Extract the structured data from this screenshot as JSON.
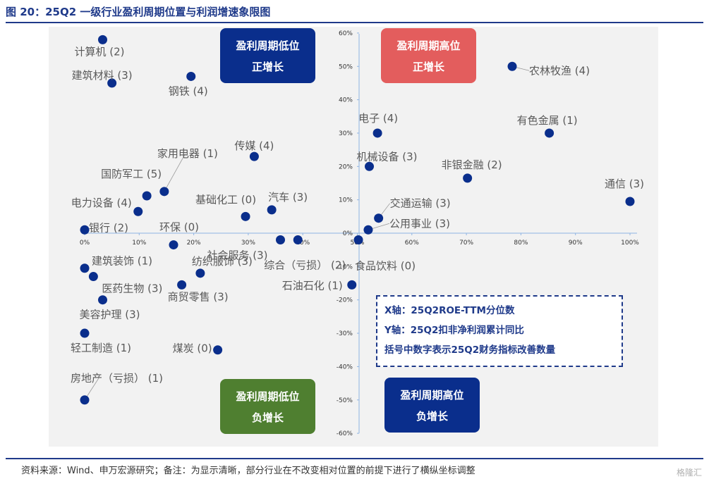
{
  "page": {
    "title": "图 20：25Q2 一级行业盈利周期位置与利润增速象限图",
    "source": "资料来源：Wind、申万宏源研究；备注：为显示清晰，部分行业在不改变相对位置的前提下进行了横纵坐标调整",
    "watermark": "格隆汇"
  },
  "legend": {
    "line1": "X轴：25Q2ROE-TTM分位数",
    "line2": "Y轴：25Q2扣非净利润累计同比",
    "line3": "括号中数字表示25Q2财务指标改善数量"
  },
  "colors": {
    "point": "#0a2e8c",
    "axis": "#8fb4e3",
    "tick_text": "#333333",
    "label_text": "#595959",
    "low_positive": "#0a2e8c",
    "high_positive": "#e35d5d",
    "low_negative": "#4f7f30",
    "high_negative": "#0a2e8c"
  },
  "chart_data": {
    "type": "scatter",
    "xlabel": "25Q2ROE-TTM分位数",
    "ylabel": "25Q2扣非净利润累计同比",
    "xlim": [
      0,
      1
    ],
    "ylim": [
      -0.6,
      0.6
    ],
    "x_tick_labels": [
      "0%",
      "10%",
      "20%",
      "30%",
      "40%",
      "50%",
      "60%",
      "70%",
      "80%",
      "90%",
      "100%"
    ],
    "y_tick_labels": [
      "-60%",
      "-50%",
      "-40%",
      "-30%",
      "-20%",
      "-10%",
      "0%",
      "10%",
      "20%",
      "30%",
      "40%",
      "50%",
      "60%"
    ],
    "grid": false,
    "quadrants": [
      {
        "label_line1": "盈利周期低位",
        "label_line2": "正增长",
        "color": "#0a2e8c",
        "position": "top-left"
      },
      {
        "label_line1": "盈利周期高位",
        "label_line2": "正增长",
        "color": "#e35d5d",
        "position": "top-right"
      },
      {
        "label_line1": "盈利周期低位",
        "label_line2": "负增长",
        "color": "#4f7f30",
        "position": "bottom-left"
      },
      {
        "label_line1": "盈利周期高位",
        "label_line2": "负增长",
        "color": "#0a2e8c",
        "position": "bottom-right"
      }
    ],
    "points": [
      {
        "label": "计算机 (2)",
        "x": 0.033,
        "y": 0.58
      },
      {
        "label": "建筑材料 (3)",
        "x": 0.05,
        "y": 0.45
      },
      {
        "label": "钢铁 (4)",
        "x": 0.195,
        "y": 0.47
      },
      {
        "label": "农林牧渔 (4)",
        "x": 0.784,
        "y": 0.5
      },
      {
        "label": "电子 (4)",
        "x": 0.537,
        "y": 0.3
      },
      {
        "label": "有色金属 (1)",
        "x": 0.852,
        "y": 0.3
      },
      {
        "label": "传媒 (4)",
        "x": 0.311,
        "y": 0.23
      },
      {
        "label": "家用电器 (1)",
        "x": 0.146,
        "y": 0.125
      },
      {
        "label": "机械设备 (3)",
        "x": 0.522,
        "y": 0.2
      },
      {
        "label": "非银金融 (2)",
        "x": 0.702,
        "y": 0.165
      },
      {
        "label": "通信 (3)",
        "x": 1.0,
        "y": 0.095
      },
      {
        "label": "国防军工 (5)",
        "x": 0.114,
        "y": 0.112
      },
      {
        "label": "汽车 (3)",
        "x": 0.343,
        "y": 0.07
      },
      {
        "label": "电力设备 (4)",
        "x": 0.098,
        "y": 0.065
      },
      {
        "label": "基础化工 (0)",
        "x": 0.295,
        "y": 0.05
      },
      {
        "label": "交通运输 (3)",
        "x": 0.539,
        "y": 0.045
      },
      {
        "label": "银行 (2)",
        "x": 0.0,
        "y": 0.01
      },
      {
        "label": "公用事业 (3)",
        "x": 0.52,
        "y": 0.01
      },
      {
        "label": "环保 (0)",
        "x": 0.163,
        "y": -0.035
      },
      {
        "label": "社会服务 (3)",
        "x": 0.359,
        "y": -0.02
      },
      {
        "label": "综合（亏损） (2)",
        "x": 0.391,
        "y": -0.02
      },
      {
        "label": "食品饮料 (0)",
        "x": 0.502,
        "y": -0.02
      },
      {
        "label": "建筑装饰 (1)",
        "x": 0.0,
        "y": -0.105
      },
      {
        "label": "医药生物 (3)",
        "x": 0.016,
        "y": -0.13
      },
      {
        "label": "纺织服饰 (3)",
        "x": 0.212,
        "y": -0.12
      },
      {
        "label": "商贸零售 (3)",
        "x": 0.178,
        "y": -0.155
      },
      {
        "label": "石油石化 (1)",
        "x": 0.49,
        "y": -0.155
      },
      {
        "label": "美容护理 (3)",
        "x": 0.033,
        "y": -0.2
      },
      {
        "label": "轻工制造 (1)",
        "x": 0.0,
        "y": -0.3
      },
      {
        "label": "煤炭 (0)",
        "x": 0.244,
        "y": -0.35
      },
      {
        "label": "房地产（亏损） (1)",
        "x": 0.0,
        "y": -0.5
      }
    ]
  }
}
